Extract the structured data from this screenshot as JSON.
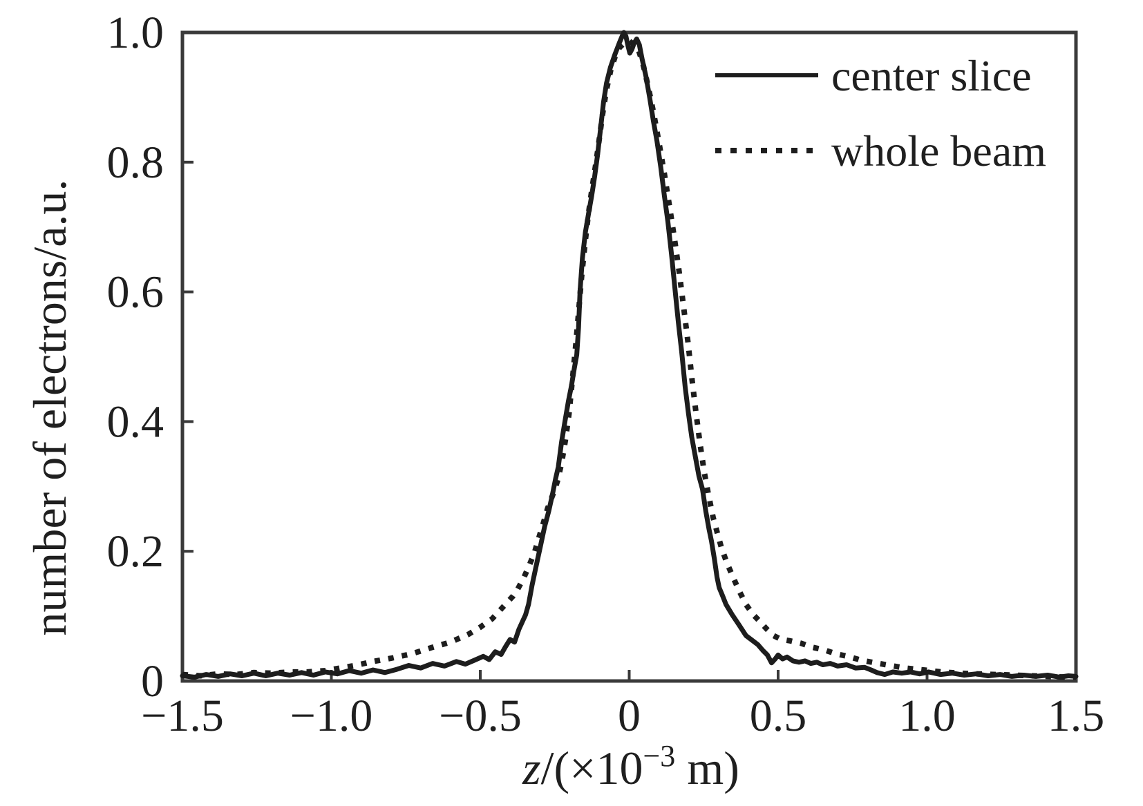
{
  "figure": {
    "background": "#ffffff"
  },
  "colors": {
    "curve": "#1d1d1d",
    "frame": "#3a3a3a",
    "text": "#1f1f1f"
  },
  "chart_data": {
    "type": "line",
    "title": "",
    "xlabel_plain": "z/(×10−3 m)",
    "xlabel_parts": {
      "variable": "z",
      "pre": "/(×10",
      "superscript": "−3",
      "post": " m)"
    },
    "ylabel": "number of electrons/a.u.",
    "xlim": [
      -1.5,
      1.5
    ],
    "ylim": [
      0,
      1.0
    ],
    "grid": false,
    "legend_position": "upper-right",
    "x_ticks": [
      {
        "value": -1.5,
        "label": "−1.5"
      },
      {
        "value": -1.0,
        "label": "−1.0"
      },
      {
        "value": -0.5,
        "label": "−0.5"
      },
      {
        "value": 0,
        "label": "0"
      },
      {
        "value": 0.5,
        "label": "0.5"
      },
      {
        "value": 1.0,
        "label": "1.0"
      },
      {
        "value": 1.5,
        "label": "1.5"
      }
    ],
    "y_ticks": [
      {
        "value": 0,
        "label": "0"
      },
      {
        "value": 0.2,
        "label": "0.2"
      },
      {
        "value": 0.4,
        "label": "0.4"
      },
      {
        "value": 0.6,
        "label": "0.6"
      },
      {
        "value": 0.8,
        "label": "0.8"
      },
      {
        "value": 1.0,
        "label": "1.0"
      }
    ],
    "legend": [
      {
        "label": "center slice",
        "style": "solid"
      },
      {
        "label": "whole beam",
        "style": "dotted"
      }
    ],
    "series": [
      {
        "name": "center slice",
        "style": "solid",
        "points": [
          [
            -1.5,
            0.008
          ],
          [
            -1.46,
            0.006
          ],
          [
            -1.42,
            0.01
          ],
          [
            -1.38,
            0.007
          ],
          [
            -1.34,
            0.011
          ],
          [
            -1.3,
            0.008
          ],
          [
            -1.26,
            0.012
          ],
          [
            -1.22,
            0.008
          ],
          [
            -1.18,
            0.012
          ],
          [
            -1.14,
            0.009
          ],
          [
            -1.1,
            0.013
          ],
          [
            -1.06,
            0.009
          ],
          [
            -1.02,
            0.014
          ],
          [
            -0.98,
            0.011
          ],
          [
            -0.94,
            0.016
          ],
          [
            -0.9,
            0.012
          ],
          [
            -0.86,
            0.017
          ],
          [
            -0.82,
            0.013
          ],
          [
            -0.78,
            0.018
          ],
          [
            -0.74,
            0.024
          ],
          [
            -0.7,
            0.02
          ],
          [
            -0.66,
            0.027
          ],
          [
            -0.62,
            0.023
          ],
          [
            -0.58,
            0.03
          ],
          [
            -0.55,
            0.026
          ],
          [
            -0.52,
            0.032
          ],
          [
            -0.49,
            0.038
          ],
          [
            -0.47,
            0.033
          ],
          [
            -0.45,
            0.045
          ],
          [
            -0.43,
            0.041
          ],
          [
            -0.415,
            0.053
          ],
          [
            -0.4,
            0.064
          ],
          [
            -0.385,
            0.06
          ],
          [
            -0.37,
            0.08
          ],
          [
            -0.357,
            0.093
          ],
          [
            -0.348,
            0.102
          ],
          [
            -0.338,
            0.118
          ],
          [
            -0.326,
            0.148
          ],
          [
            -0.312,
            0.178
          ],
          [
            -0.298,
            0.208
          ],
          [
            -0.284,
            0.238
          ],
          [
            -0.27,
            0.262
          ],
          [
            -0.258,
            0.287
          ],
          [
            -0.247,
            0.312
          ],
          [
            -0.238,
            0.33
          ],
          [
            -0.227,
            0.369
          ],
          [
            -0.215,
            0.402
          ],
          [
            -0.204,
            0.432
          ],
          [
            -0.194,
            0.455
          ],
          [
            -0.184,
            0.483
          ],
          [
            -0.176,
            0.503
          ],
          [
            -0.17,
            0.545
          ],
          [
            -0.165,
            0.602
          ],
          [
            -0.157,
            0.652
          ],
          [
            -0.147,
            0.692
          ],
          [
            -0.136,
            0.722
          ],
          [
            -0.126,
            0.748
          ],
          [
            -0.116,
            0.778
          ],
          [
            -0.106,
            0.812
          ],
          [
            -0.096,
            0.852
          ],
          [
            -0.086,
            0.893
          ],
          [
            -0.076,
            0.922
          ],
          [
            -0.063,
            0.946
          ],
          [
            -0.048,
            0.966
          ],
          [
            -0.033,
            0.984
          ],
          [
            -0.024,
            0.994
          ],
          [
            -0.018,
            1.0
          ],
          [
            -0.011,
            0.994
          ],
          [
            -0.004,
            0.979
          ],
          [
            0.002,
            0.968
          ],
          [
            0.009,
            0.974
          ],
          [
            0.016,
            0.983
          ],
          [
            0.025,
            0.99
          ],
          [
            0.034,
            0.981
          ],
          [
            0.043,
            0.96
          ],
          [
            0.056,
            0.933
          ],
          [
            0.069,
            0.899
          ],
          [
            0.081,
            0.864
          ],
          [
            0.093,
            0.833
          ],
          [
            0.106,
            0.792
          ],
          [
            0.118,
            0.748
          ],
          [
            0.13,
            0.708
          ],
          [
            0.142,
            0.658
          ],
          [
            0.153,
            0.608
          ],
          [
            0.165,
            0.553
          ],
          [
            0.176,
            0.508
          ],
          [
            0.188,
            0.453
          ],
          [
            0.199,
            0.412
          ],
          [
            0.21,
            0.376
          ],
          [
            0.222,
            0.346
          ],
          [
            0.234,
            0.316
          ],
          [
            0.246,
            0.296
          ],
          [
            0.257,
            0.262
          ],
          [
            0.268,
            0.234
          ],
          [
            0.276,
            0.216
          ],
          [
            0.286,
            0.188
          ],
          [
            0.295,
            0.16
          ],
          [
            0.302,
            0.144
          ],
          [
            0.312,
            0.133
          ],
          [
            0.325,
            0.118
          ],
          [
            0.346,
            0.102
          ],
          [
            0.368,
            0.087
          ],
          [
            0.392,
            0.07
          ],
          [
            0.412,
            0.063
          ],
          [
            0.432,
            0.056
          ],
          [
            0.449,
            0.047
          ],
          [
            0.464,
            0.04
          ],
          [
            0.478,
            0.028
          ],
          [
            0.49,
            0.034
          ],
          [
            0.5,
            0.04
          ],
          [
            0.515,
            0.034
          ],
          [
            0.53,
            0.037
          ],
          [
            0.55,
            0.031
          ],
          [
            0.57,
            0.029
          ],
          [
            0.59,
            0.031
          ],
          [
            0.61,
            0.027
          ],
          [
            0.63,
            0.029
          ],
          [
            0.65,
            0.025
          ],
          [
            0.675,
            0.027
          ],
          [
            0.7,
            0.023
          ],
          [
            0.73,
            0.025
          ],
          [
            0.76,
            0.02
          ],
          [
            0.79,
            0.021
          ],
          [
            0.812,
            0.017
          ],
          [
            0.832,
            0.013
          ],
          [
            0.858,
            0.01
          ],
          [
            0.885,
            0.014
          ],
          [
            0.915,
            0.012
          ],
          [
            0.945,
            0.014
          ],
          [
            0.975,
            0.011
          ],
          [
            1.005,
            0.014
          ],
          [
            1.045,
            0.01
          ],
          [
            1.085,
            0.012
          ],
          [
            1.125,
            0.009
          ],
          [
            1.165,
            0.011
          ],
          [
            1.205,
            0.008
          ],
          [
            1.245,
            0.01
          ],
          [
            1.285,
            0.007
          ],
          [
            1.325,
            0.009
          ],
          [
            1.365,
            0.007
          ],
          [
            1.405,
            0.009
          ],
          [
            1.445,
            0.006
          ],
          [
            1.475,
            0.008
          ],
          [
            1.5,
            0.007
          ]
        ]
      },
      {
        "name": "whole beam",
        "style": "dotted",
        "points": [
          [
            -1.5,
            0.01
          ],
          [
            -1.44,
            0.008
          ],
          [
            -1.38,
            0.011
          ],
          [
            -1.32,
            0.01
          ],
          [
            -1.26,
            0.013
          ],
          [
            -1.2,
            0.012
          ],
          [
            -1.14,
            0.014
          ],
          [
            -1.08,
            0.014
          ],
          [
            -1.02,
            0.016
          ],
          [
            -0.97,
            0.02
          ],
          [
            -0.92,
            0.024
          ],
          [
            -0.86,
            0.03
          ],
          [
            -0.8,
            0.035
          ],
          [
            -0.73,
            0.042
          ],
          [
            -0.66,
            0.052
          ],
          [
            -0.6,
            0.06
          ],
          [
            -0.54,
            0.072
          ],
          [
            -0.5,
            0.083
          ],
          [
            -0.46,
            0.096
          ],
          [
            -0.42,
            0.116
          ],
          [
            -0.39,
            0.131
          ],
          [
            -0.374,
            0.142
          ],
          [
            -0.355,
            0.158
          ],
          [
            -0.334,
            0.18
          ],
          [
            -0.318,
            0.198
          ],
          [
            -0.304,
            0.22
          ],
          [
            -0.288,
            0.244
          ],
          [
            -0.274,
            0.266
          ],
          [
            -0.256,
            0.288
          ],
          [
            -0.241,
            0.308
          ],
          [
            -0.227,
            0.336
          ],
          [
            -0.214,
            0.372
          ],
          [
            -0.202,
            0.412
          ],
          [
            -0.19,
            0.468
          ],
          [
            -0.18,
            0.515
          ],
          [
            -0.17,
            0.568
          ],
          [
            -0.16,
            0.622
          ],
          [
            -0.149,
            0.672
          ],
          [
            -0.138,
            0.716
          ],
          [
            -0.126,
            0.756
          ],
          [
            -0.114,
            0.792
          ],
          [
            -0.102,
            0.83
          ],
          [
            -0.09,
            0.872
          ],
          [
            -0.077,
            0.91
          ],
          [
            -0.062,
            0.942
          ],
          [
            -0.047,
            0.963
          ],
          [
            -0.032,
            0.977
          ],
          [
            -0.016,
            0.984
          ],
          [
            0.0,
            0.987
          ],
          [
            0.016,
            0.981
          ],
          [
            0.032,
            0.972
          ],
          [
            0.048,
            0.948
          ],
          [
            0.064,
            0.916
          ],
          [
            0.082,
            0.876
          ],
          [
            0.1,
            0.83
          ],
          [
            0.118,
            0.782
          ],
          [
            0.136,
            0.73
          ],
          [
            0.152,
            0.682
          ],
          [
            0.168,
            0.63
          ],
          [
            0.184,
            0.572
          ],
          [
            0.198,
            0.52
          ],
          [
            0.211,
            0.465
          ],
          [
            0.224,
            0.415
          ],
          [
            0.238,
            0.365
          ],
          [
            0.252,
            0.322
          ],
          [
            0.266,
            0.288
          ],
          [
            0.282,
            0.252
          ],
          [
            0.296,
            0.228
          ],
          [
            0.31,
            0.205
          ],
          [
            0.328,
            0.182
          ],
          [
            0.346,
            0.163
          ],
          [
            0.368,
            0.14
          ],
          [
            0.392,
            0.118
          ],
          [
            0.415,
            0.103
          ],
          [
            0.438,
            0.092
          ],
          [
            0.462,
            0.08
          ],
          [
            0.485,
            0.07
          ],
          [
            0.51,
            0.064
          ],
          [
            0.54,
            0.062
          ],
          [
            0.578,
            0.058
          ],
          [
            0.615,
            0.052
          ],
          [
            0.654,
            0.048
          ],
          [
            0.694,
            0.042
          ],
          [
            0.733,
            0.038
          ],
          [
            0.78,
            0.032
          ],
          [
            0.826,
            0.028
          ],
          [
            0.876,
            0.024
          ],
          [
            0.926,
            0.02
          ],
          [
            0.988,
            0.017
          ],
          [
            1.05,
            0.014
          ],
          [
            1.11,
            0.012
          ],
          [
            1.17,
            0.011
          ],
          [
            1.23,
            0.01
          ],
          [
            1.29,
            0.009
          ],
          [
            1.35,
            0.008
          ],
          [
            1.41,
            0.007
          ],
          [
            1.47,
            0.006
          ],
          [
            1.5,
            0.006
          ]
        ]
      }
    ]
  }
}
